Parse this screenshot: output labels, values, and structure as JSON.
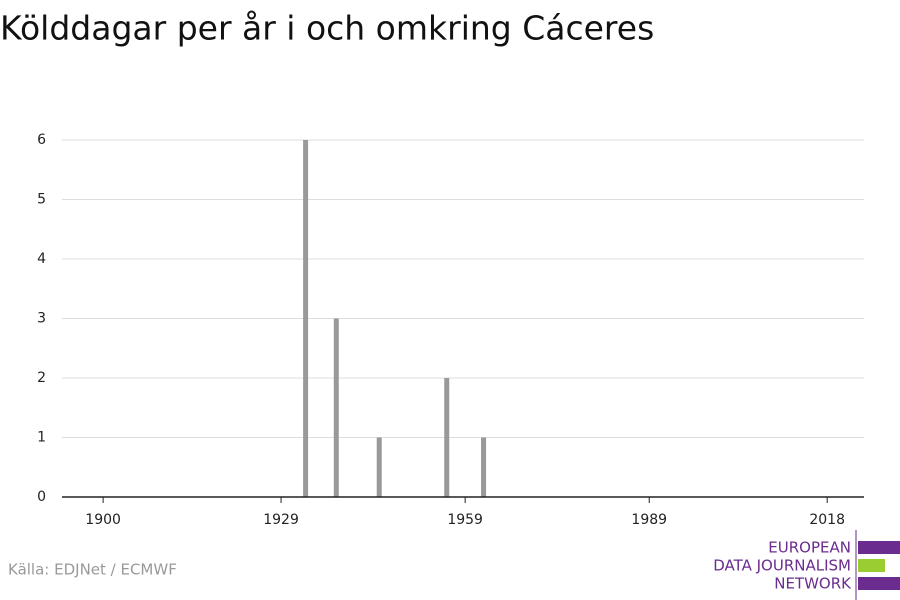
{
  "chart_data": {
    "type": "bar",
    "title": "Kölddagar per år i och omkring Cáceres",
    "x": [
      1933,
      1938,
      1945,
      1956,
      1962
    ],
    "values": [
      6,
      3,
      1,
      2,
      1
    ],
    "color": "#999999",
    "xlim": [
      1893.3,
      2024
    ],
    "xticks": [
      1900,
      1929,
      1959,
      1989,
      2018
    ],
    "ylim": [
      0,
      6
    ],
    "yticks": [
      0,
      1,
      2,
      3,
      4,
      5,
      6
    ],
    "grid": true,
    "source": "Källa: EDJNet / ECMWF",
    "logo": [
      "EUROPEAN",
      "DATA JOURNALISM",
      "NETWORK"
    ]
  }
}
